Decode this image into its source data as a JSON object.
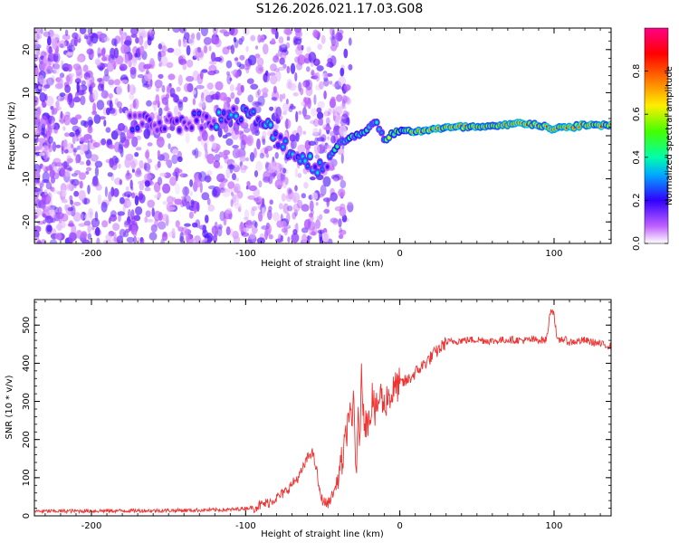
{
  "page_title": "S126.2026.021.17.03.G08",
  "chart_data": [
    {
      "type": "heatmap",
      "title": "S126.2026.021.17.03.G08",
      "xlabel": "Height of straight line (km)",
      "ylabel": "Frequency (Hz)",
      "xlim": [
        -237,
        137
      ],
      "ylim": [
        -25,
        25
      ],
      "xticks": [
        -200,
        -100,
        0,
        100
      ],
      "xtick_labels": [
        "-200",
        "-100",
        "0",
        "100"
      ],
      "yticks": [
        -20,
        -10,
        0,
        10,
        20
      ],
      "ytick_labels": [
        "-20",
        "-10",
        "0",
        "10",
        "20"
      ],
      "colorbar": {
        "label": "Normalized spectral amplitude",
        "range": [
          0,
          1
        ],
        "ticks": [
          0,
          0.2,
          0.4,
          0.6,
          0.8
        ],
        "tick_labels": [
          "0.0",
          "0.2",
          "0.4",
          "0.6",
          "0.8"
        ]
      },
      "ridge": {
        "x": [
          -240,
          -180,
          -150,
          -120,
          -100,
          -90,
          -80,
          -70,
          -60,
          -50,
          -45,
          -40,
          -35,
          -30,
          -25,
          -20,
          -15,
          -10,
          -5,
          0,
          10,
          20,
          40,
          60,
          70,
          80,
          90,
          100,
          110,
          120,
          137
        ],
        "freq": [
          3,
          3,
          3,
          4,
          5,
          3,
          0,
          -4,
          -6,
          -7,
          -5,
          -2,
          -1,
          0,
          0.5,
          2,
          3,
          -1,
          0.5,
          1,
          1,
          1.5,
          2,
          2,
          2.5,
          3,
          2.5,
          1.5,
          2,
          2.5,
          2.5
        ]
      }
    },
    {
      "type": "line",
      "xlabel": "Height of straight line (km)",
      "ylabel": "SNR (10 * v/v)",
      "xlim": [
        -237,
        137
      ],
      "ylim": [
        0,
        567
      ],
      "xticks": [
        -200,
        -100,
        0,
        100
      ],
      "xtick_labels": [
        "-200",
        "-100",
        "0",
        "100"
      ],
      "yticks": [
        0,
        100,
        200,
        300,
        400,
        500
      ],
      "ytick_labels": [
        "0",
        "100",
        "200",
        "300",
        "400",
        "500"
      ],
      "series": [
        {
          "name": "SNR",
          "color": "#ee3333",
          "x": [
            -237,
            -200,
            -150,
            -110,
            -95,
            -85,
            -75,
            -65,
            -60,
            -57,
            -54,
            -52,
            -50,
            -47,
            -45,
            -42,
            -40,
            -37,
            -35,
            -33,
            -31,
            -30,
            -29,
            -28,
            -27,
            -26,
            -25,
            -23,
            -21,
            -20,
            -19,
            -18,
            -16,
            -14,
            -12,
            -10,
            -8,
            -6,
            -4,
            -2,
            0,
            5,
            10,
            15,
            20,
            25,
            30,
            40,
            50,
            60,
            70,
            80,
            90,
            95,
            98,
            100,
            102,
            105,
            110,
            120,
            130,
            137
          ],
          "y": [
            12,
            13,
            14,
            16,
            22,
            35,
            60,
            105,
            150,
            170,
            120,
            60,
            40,
            30,
            45,
            70,
            105,
            150,
            200,
            280,
            220,
            330,
            180,
            120,
            250,
            200,
            360,
            260,
            230,
            300,
            240,
            330,
            260,
            300,
            320,
            280,
            320,
            310,
            330,
            340,
            345,
            355,
            375,
            395,
            415,
            435,
            455,
            460,
            462,
            458,
            462,
            460,
            462,
            460,
            545,
            530,
            455,
            465,
            455,
            460,
            450,
            445
          ]
        }
      ]
    }
  ]
}
